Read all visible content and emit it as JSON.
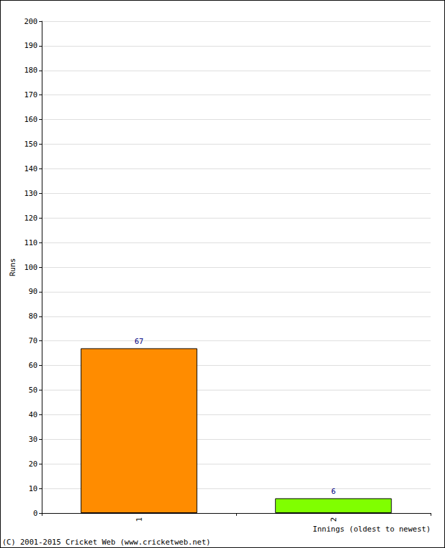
{
  "chart_data": {
    "type": "bar",
    "categories": [
      "1",
      "2"
    ],
    "values": [
      67,
      6
    ],
    "colors": [
      "#ff8c00",
      "#80ff00"
    ],
    "x_label": "Innings (oldest to newest)",
    "y_label": "Runs",
    "ylim": [
      0,
      200
    ],
    "yticks": [
      0,
      10,
      20,
      30,
      40,
      50,
      60,
      70,
      80,
      90,
      100,
      110,
      120,
      130,
      140,
      150,
      160,
      170,
      180,
      190,
      200
    ],
    "grid": true,
    "data_labels": true,
    "annotations": [
      "(C) 2001-2015 Cricket Web (www.cricketweb.net)"
    ]
  }
}
